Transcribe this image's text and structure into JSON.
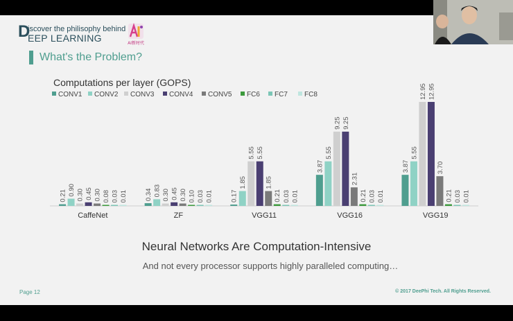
{
  "logo": {
    "initial": "D",
    "line1": "iscover the philisophy behind",
    "line2": "EEP LEARNING",
    "badge_text": "AI新时代"
  },
  "section": {
    "title": "What's the Problem?"
  },
  "chart_data": {
    "type": "bar",
    "title": "Computations per layer (GOPS)",
    "categories": [
      "CaffeNet",
      "ZF",
      "VGG11",
      "VGG16",
      "VGG19"
    ],
    "series": [
      {
        "name": "CONV1",
        "color": "#4f9e8f",
        "values": [
          0.21,
          0.34,
          0.17,
          3.87,
          3.87
        ]
      },
      {
        "name": "CONV2",
        "color": "#8fd2c5",
        "values": [
          0.9,
          0.83,
          1.85,
          5.55,
          5.55
        ]
      },
      {
        "name": "CONV3",
        "color": "#cfcfcf",
        "values": [
          0.3,
          0.3,
          5.55,
          9.25,
          12.95
        ]
      },
      {
        "name": "CONV4",
        "color": "#4a3f72",
        "values": [
          0.45,
          0.45,
          5.55,
          9.25,
          12.95
        ]
      },
      {
        "name": "CONV5",
        "color": "#7a7a7a",
        "values": [
          0.3,
          0.3,
          1.85,
          2.31,
          3.7
        ]
      },
      {
        "name": "FC6",
        "color": "#3c9a3c",
        "values": [
          0.08,
          0.1,
          0.21,
          0.21,
          0.21
        ]
      },
      {
        "name": "FC7",
        "color": "#7cc6b6",
        "values": [
          0.03,
          0.03,
          0.03,
          0.03,
          0.03
        ]
      },
      {
        "name": "FC8",
        "color": "#bfe6df",
        "values": [
          0.01,
          0.01,
          0.01,
          0.01,
          0.01
        ]
      }
    ],
    "ylim": [
      0,
      12.95
    ],
    "legend": "top-left",
    "grid": false
  },
  "captions": {
    "main": "Neural Networks Are Computation-Intensive",
    "sub": "And not every processor supports highly paralleled computing…"
  },
  "footer": {
    "page": "Page 12",
    "copyright": "© 2017 DeePhi Tech. All Rights Reserved."
  }
}
